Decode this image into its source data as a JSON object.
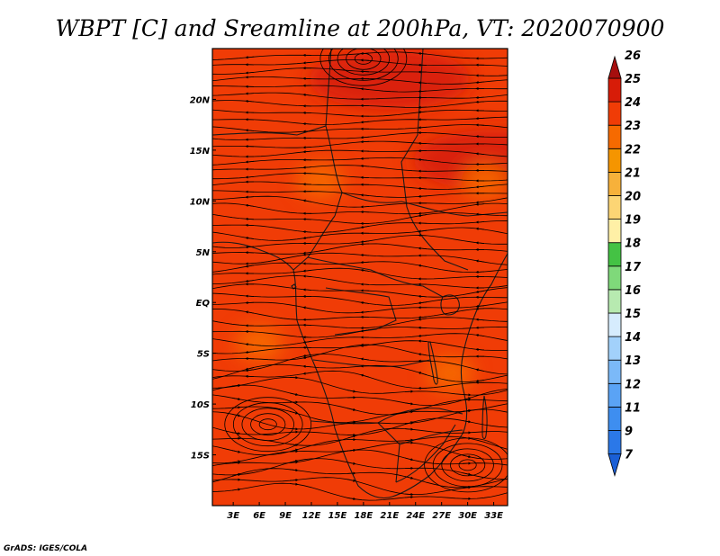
{
  "chart_data": {
    "type": "heatmap",
    "title": "WBPT [C] and Sreamline at 200hPa, VT: 2020070900",
    "variable": "Wet-bulb potential temperature",
    "units": "C",
    "overlay": "streamlines",
    "level": "200hPa",
    "valid_time": "2020070900",
    "xlabel": "",
    "ylabel": "",
    "x_ticks": [
      "3E",
      "6E",
      "9E",
      "12E",
      "15E",
      "18E",
      "21E",
      "24E",
      "27E",
      "30E",
      "33E"
    ],
    "x_tick_values": [
      3,
      6,
      9,
      12,
      15,
      18,
      21,
      24,
      27,
      30,
      33
    ],
    "y_ticks": [
      "20N",
      "15N",
      "10N",
      "5N",
      "EQ",
      "5S",
      "10S",
      "15S"
    ],
    "y_tick_values": [
      20,
      15,
      10,
      5,
      0,
      -5,
      -10,
      -15
    ],
    "xlim": [
      0.6,
      34.6
    ],
    "ylim": [
      -20,
      25
    ],
    "colorbar": {
      "levels": [
        "7",
        "9",
        "11",
        "12",
        "13",
        "14",
        "15",
        "16",
        "17",
        "18",
        "19",
        "20",
        "21",
        "22",
        "23",
        "24",
        "25",
        "26"
      ],
      "colors": [
        "#1a5fd6",
        "#2b78e8",
        "#3e8ef0",
        "#5aa3f5",
        "#7bb9f8",
        "#a2d1fb",
        "#d6ecfd",
        "#b7eab0",
        "#7fd97a",
        "#44c244",
        "#fff0a6",
        "#fcd574",
        "#f7b13a",
        "#f59500",
        "#f66a00",
        "#f03c06",
        "#d71c08",
        "#a60e0e"
      ]
    },
    "dominant_range": "23-25",
    "local_maxima": [
      {
        "lat": 22,
        "lon": 21,
        "value": 25
      },
      {
        "lat": 14,
        "lon": 33,
        "value": 25
      }
    ],
    "local_minima": [
      {
        "lat": -4,
        "lon": 6,
        "value": 23
      },
      {
        "lat": -7,
        "lon": 28,
        "value": 23
      },
      {
        "lat": 12,
        "lon": 13,
        "value": 23
      },
      {
        "lat": 12,
        "lon": 32,
        "value": 23
      }
    ],
    "circulation_centers": [
      {
        "lat": 24,
        "lon": 18,
        "type": "anticyclonic"
      },
      {
        "lat": -12,
        "lon": 7,
        "type": "cyclonic"
      },
      {
        "lat": -16,
        "lon": 30,
        "type": "convergent"
      }
    ]
  },
  "credit": "GrADS: IGES/COLA"
}
